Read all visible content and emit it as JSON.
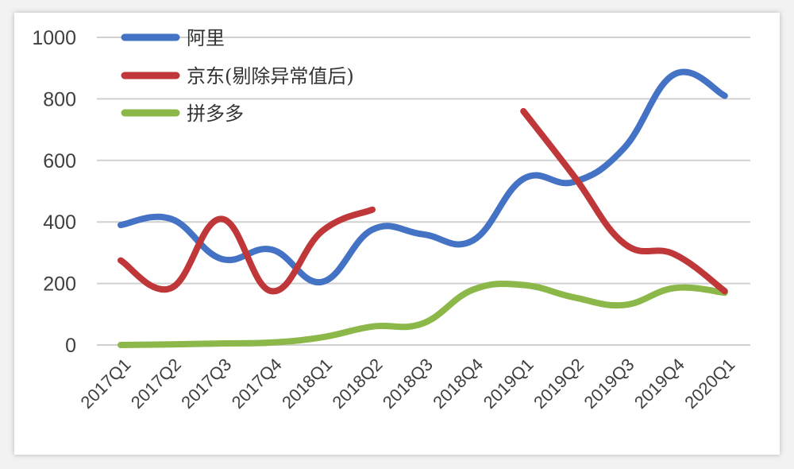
{
  "chart_data": {
    "type": "line",
    "title": "",
    "xlabel": "",
    "ylabel": "",
    "ylim": [
      0,
      1000
    ],
    "yticks": [
      0,
      200,
      400,
      600,
      800,
      1000
    ],
    "grid": true,
    "legend_position": "top-left (inside)",
    "smooth": true,
    "categories": [
      "2017Q1",
      "2017Q2",
      "2017Q3",
      "2017Q4",
      "2018Q1",
      "2018Q2",
      "2018Q3",
      "2018Q4",
      "2019Q1",
      "2019Q2",
      "2019Q3",
      "2019Q4",
      "2020Q1"
    ],
    "series": [
      {
        "name": "阿里",
        "color": "#4472c4",
        "values": [
          390,
          410,
          280,
          310,
          205,
          375,
          360,
          340,
          540,
          530,
          640,
          880,
          810
        ]
      },
      {
        "name": "京东(剔除异常值后)",
        "color": "#c0373a",
        "values": [
          275,
          185,
          410,
          175,
          370,
          440,
          null,
          null,
          760,
          550,
          330,
          295,
          175
        ]
      },
      {
        "name": "拼多多",
        "color": "#8cb84a",
        "values": [
          0,
          2,
          5,
          8,
          25,
          60,
          70,
          180,
          195,
          155,
          130,
          185,
          170
        ]
      }
    ]
  }
}
